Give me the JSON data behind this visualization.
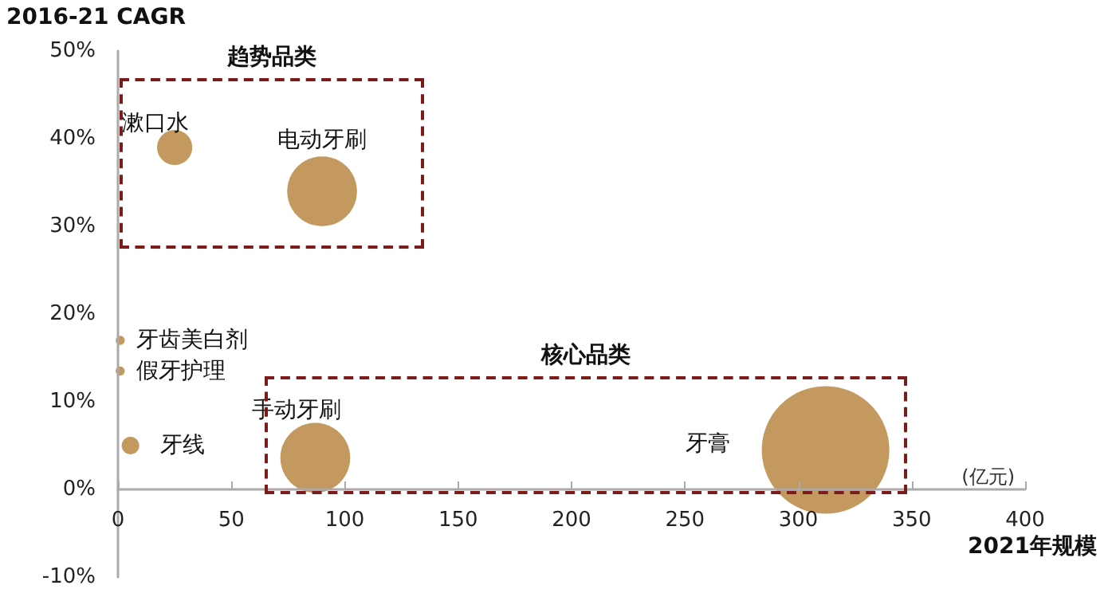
{
  "chart_data": {
    "type": "bubble",
    "xlabel": "2021年规模",
    "ylabel": "2016-21 CAGR",
    "annotations": [
      "趋势品类",
      "核心品类",
      "(亿元)"
    ],
    "xlim": [
      0,
      400
    ],
    "xticks": [
      0,
      50,
      100,
      150,
      200,
      250,
      300,
      350,
      400
    ],
    "ylim": [
      -10,
      50
    ],
    "yticks": [
      {
        "value": -10,
        "label": "-10%"
      },
      {
        "value": 0,
        "label": "0%"
      },
      {
        "value": 10,
        "label": "10%"
      },
      {
        "value": 20,
        "label": "20%"
      },
      {
        "value": 30,
        "label": "30%"
      },
      {
        "value": 40,
        "label": "40%"
      },
      {
        "value": 50,
        "label": "50%"
      }
    ],
    "legend": false,
    "series": [
      {
        "name": "漱口水",
        "color": "#c4995f",
        "x": [
          25
        ],
        "values": [
          39
        ],
        "sizes": [
          0.076
        ]
      },
      {
        "name": "电动牙刷",
        "color": "#c4995f",
        "x": [
          90
        ],
        "values": [
          34
        ],
        "sizes": [
          0.3
        ]
      },
      {
        "name": "牙齿美白剂",
        "color": "#c4995f",
        "x": [
          1
        ],
        "values": [
          17
        ],
        "sizes": [
          0.005
        ]
      },
      {
        "name": "假牙护理",
        "color": "#c4995f",
        "x": [
          1
        ],
        "values": [
          13.5
        ],
        "sizes": [
          0.005
        ]
      },
      {
        "name": "牙线",
        "color": "#c4995f",
        "x": [
          5.5
        ],
        "values": [
          5
        ],
        "sizes": [
          0.019
        ]
      },
      {
        "name": "手动牙刷",
        "color": "#c4995f",
        "x": [
          87
        ],
        "values": [
          3.6
        ],
        "sizes": [
          0.3
        ]
      },
      {
        "name": "牙膏",
        "color": "#c4995f",
        "x": [
          312
        ],
        "values": [
          4.5
        ],
        "sizes": [
          1
        ]
      }
    ]
  }
}
